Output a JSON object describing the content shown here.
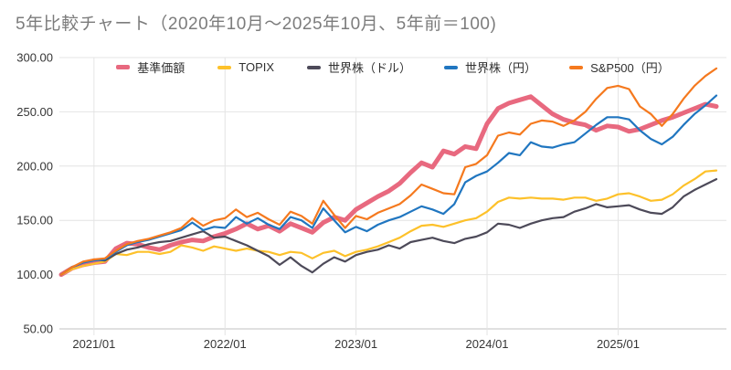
{
  "title": "5年比較チャート（2020年10月〜2025年10月、5年前＝100)",
  "chart_data": {
    "type": "line",
    "title": "5年比較チャート（2020年10月〜2025年10月、5年前＝100)",
    "x_unit": "month",
    "x_range": [
      "2020/10",
      "2025/10"
    ],
    "index_base": "5年前＝100",
    "x_tick_labels": [
      "2021/01",
      "2022/01",
      "2023/01",
      "2024/01",
      "2025/01"
    ],
    "x_tick_month_index": [
      3,
      15,
      27,
      39,
      51
    ],
    "y_ticks": [
      "300.00",
      "250.00",
      "200.00",
      "150.00",
      "100.00",
      "50.00"
    ],
    "ylim": [
      50,
      300
    ],
    "grid": true,
    "legend_position": "top-center",
    "series": [
      {
        "name": "基準価額",
        "color": "#e8697f",
        "width": 5,
        "values": [
          100,
          106,
          109,
          111,
          112,
          124,
          129,
          128,
          125,
          123,
          127,
          130,
          132,
          131,
          135,
          138,
          142,
          147,
          142,
          145,
          140,
          147,
          143,
          139,
          148,
          153,
          150,
          160,
          166,
          172,
          177,
          184,
          194,
          203,
          199,
          214,
          211,
          218,
          216,
          239,
          253,
          258,
          261,
          264,
          256,
          248,
          243,
          240,
          238,
          233,
          237,
          236,
          232,
          234,
          238,
          242,
          245,
          249,
          253,
          257,
          255
        ]
      },
      {
        "name": "TOPIX",
        "color": "#fdc12a",
        "width": 2.2,
        "values": [
          100,
          105,
          108,
          110,
          112,
          119,
          118,
          121,
          121,
          119,
          121,
          127,
          125,
          122,
          126,
          124,
          122,
          124,
          122,
          121,
          118,
          121,
          120,
          115,
          120,
          122,
          117,
          121,
          123,
          126,
          130,
          134,
          140,
          145,
          146,
          144,
          147,
          150,
          152,
          158,
          167,
          171,
          170,
          171,
          170,
          170,
          169,
          171,
          171,
          168,
          170,
          174,
          175,
          172,
          168,
          169,
          174,
          182,
          188,
          195,
          196
        ]
      },
      {
        "name": "世界株（ドル）",
        "color": "#4d4a59",
        "width": 2.2,
        "values": [
          100,
          107,
          111,
          114,
          113,
          119,
          123,
          125,
          128,
          130,
          131,
          134,
          137,
          140,
          134,
          135,
          131,
          127,
          122,
          117,
          109,
          116,
          108,
          102,
          110,
          116,
          112,
          118,
          121,
          123,
          127,
          124,
          130,
          132,
          134,
          131,
          129,
          133,
          135,
          139,
          147,
          146,
          143,
          147,
          150,
          152,
          153,
          158,
          161,
          165,
          162,
          163,
          164,
          160,
          157,
          156,
          162,
          172,
          178,
          183,
          188
        ]
      },
      {
        "name": "世界株（円）",
        "color": "#2076c0",
        "width": 2.2,
        "values": [
          100,
          107,
          111,
          113,
          114,
          121,
          127,
          130,
          132,
          135,
          138,
          141,
          148,
          141,
          144,
          143,
          153,
          147,
          152,
          146,
          142,
          153,
          150,
          143,
          161,
          150,
          139,
          144,
          140,
          146,
          150,
          153,
          158,
          163,
          160,
          156,
          165,
          185,
          191,
          195,
          203,
          212,
          210,
          222,
          218,
          217,
          220,
          222,
          230,
          238,
          245,
          245,
          243,
          233,
          225,
          220,
          227,
          238,
          248,
          256,
          265
        ]
      },
      {
        "name": "S&P500（円）",
        "color": "#f5791e",
        "width": 2.2,
        "values": [
          100,
          107,
          112,
          114,
          115,
          122,
          128,
          131,
          133,
          136,
          139,
          143,
          152,
          145,
          150,
          152,
          160,
          153,
          157,
          151,
          146,
          158,
          154,
          147,
          168,
          155,
          143,
          154,
          151,
          157,
          161,
          165,
          173,
          183,
          179,
          175,
          174,
          199,
          202,
          210,
          228,
          231,
          229,
          239,
          242,
          241,
          237,
          242,
          250,
          262,
          272,
          274,
          271,
          255,
          248,
          237,
          248,
          262,
          274,
          283,
          290
        ]
      }
    ]
  }
}
